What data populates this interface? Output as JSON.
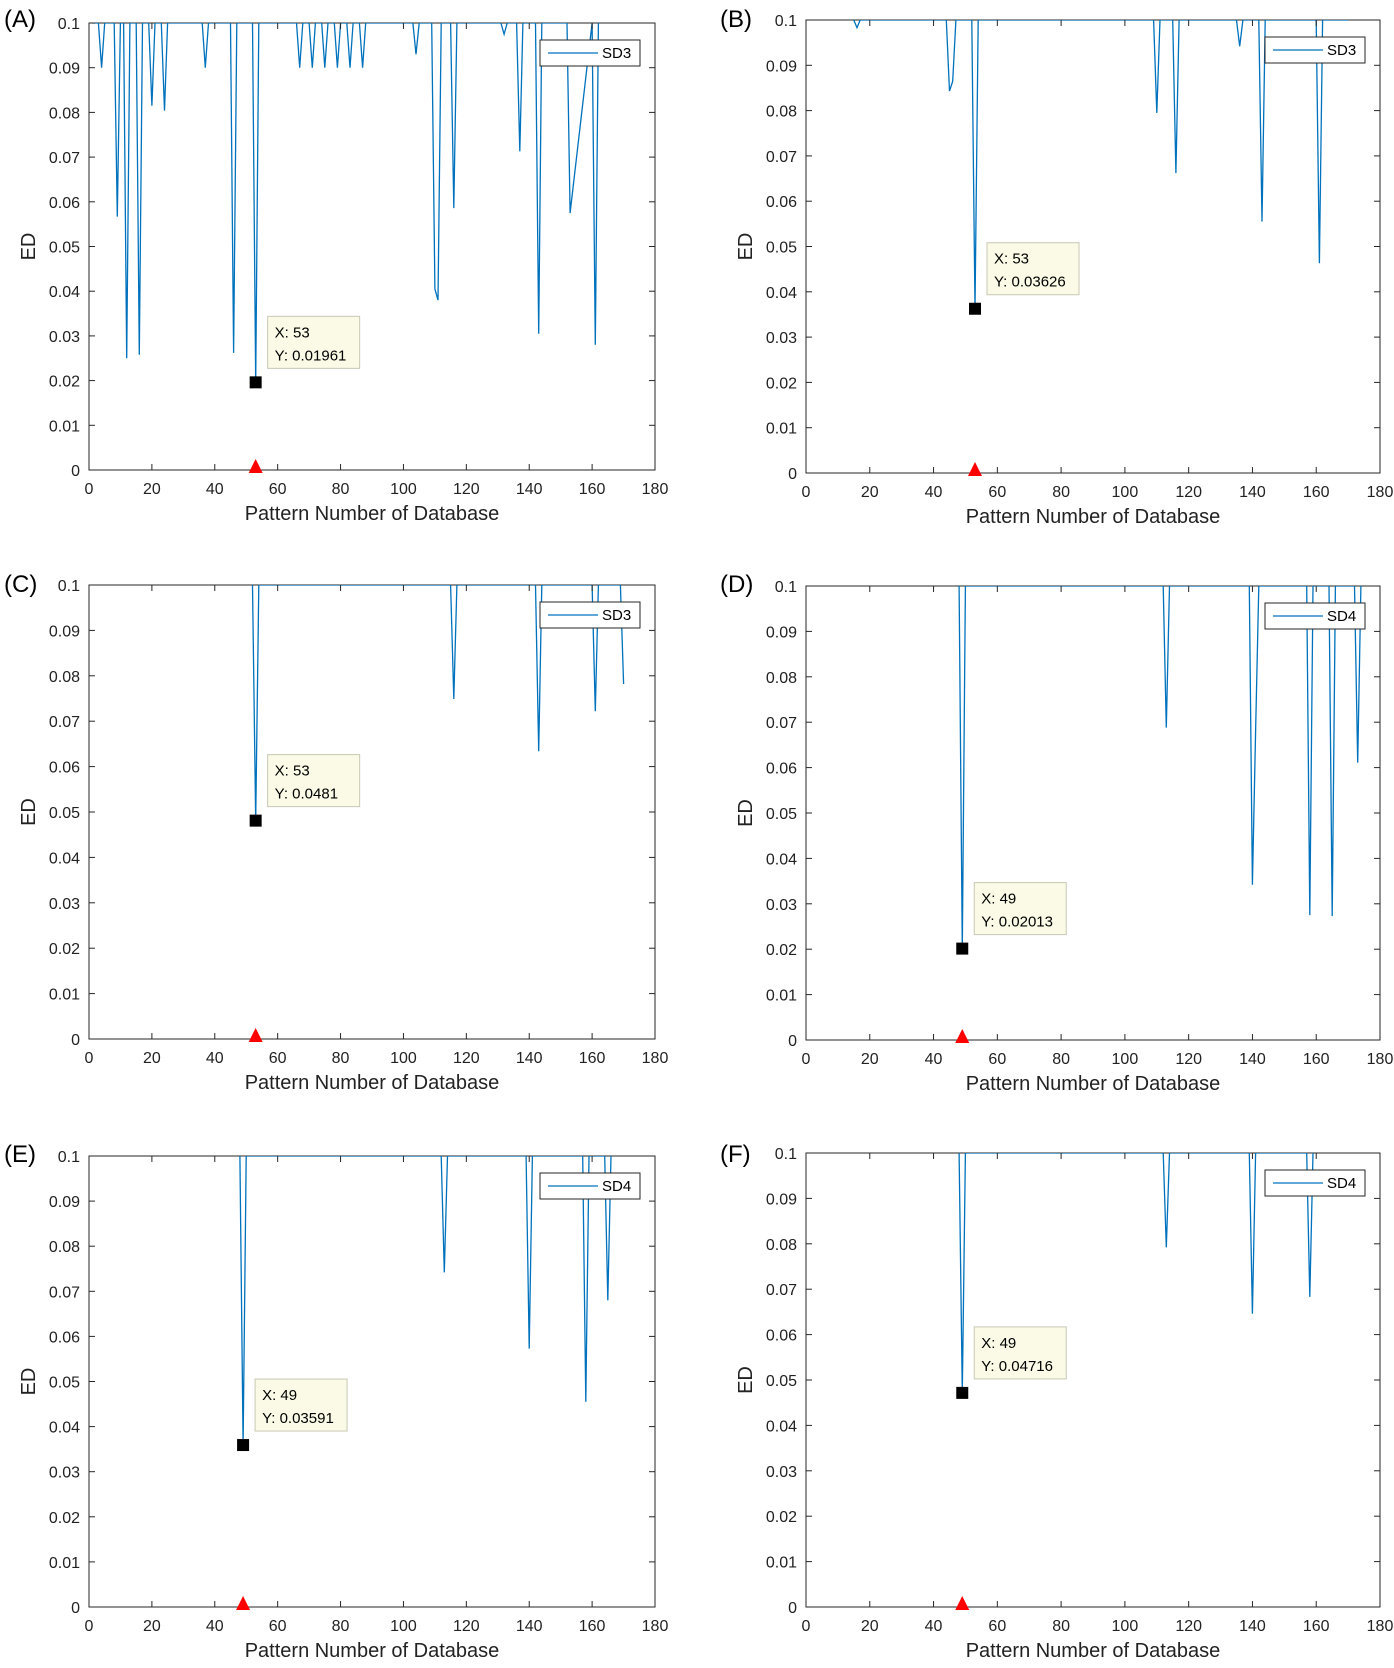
{
  "figure": {
    "xlabel": "Pattern Number of Database",
    "ylabel": "ED"
  },
  "chart_data": [
    {
      "panel": "(A)",
      "type": "line",
      "xlabel": "Pattern Number of Database",
      "ylabel": "ED",
      "xlim": [
        0,
        180
      ],
      "ylim": [
        0,
        0.1
      ],
      "xticks": [
        0,
        20,
        40,
        60,
        80,
        100,
        120,
        140,
        160,
        180
      ],
      "yticks": [
        0,
        0.01,
        0.02,
        0.03,
        0.04,
        0.05,
        0.06,
        0.07,
        0.08,
        0.09,
        0.1
      ],
      "series": [
        {
          "name": "SD3",
          "color": "#0072BD",
          "x": [
            1,
            2,
            3,
            4,
            5,
            6,
            7,
            8,
            9,
            10,
            11,
            12,
            13,
            14,
            15,
            16,
            17,
            18,
            19,
            20,
            21,
            22,
            23,
            24,
            25,
            36,
            37,
            38,
            39,
            45,
            46,
            47,
            52,
            53,
            54,
            55,
            66,
            67,
            68,
            70,
            71,
            72,
            74,
            75,
            76,
            78,
            79,
            80,
            82,
            83,
            84,
            86,
            87,
            88,
            103,
            104,
            105,
            109,
            110,
            111,
            112,
            115,
            116,
            117,
            131,
            132,
            133,
            136,
            137,
            138,
            141,
            142,
            143,
            144,
            151,
            152,
            153,
            160,
            161,
            162
          ],
          "y": [
            0.1,
            0.1,
            0.1,
            0.09,
            0.1,
            0.1,
            0.1,
            0.1,
            0.0567,
            0.1,
            0.1,
            0.025,
            0.1,
            0.1,
            0.1,
            0.0258,
            0.1,
            0.1,
            0.1,
            0.0815,
            0.1,
            0.1,
            0.1,
            0.0804,
            0.1,
            0.1,
            0.09,
            0.1,
            0.1,
            0.1,
            0.0262,
            0.1,
            0.1,
            0.01961,
            0.1,
            0.1,
            0.1,
            0.09,
            0.1,
            0.1,
            0.09,
            0.1,
            0.1,
            0.09,
            0.1,
            0.1,
            0.09,
            0.1,
            0.1,
            0.09,
            0.1,
            0.1,
            0.09,
            0.1,
            0.1,
            0.093,
            0.1,
            0.1,
            0.0405,
            0.038,
            0.1,
            0.1,
            0.0586,
            0.1,
            0.1,
            0.0975,
            0.1,
            0.1,
            0.0713,
            0.1,
            0.1,
            0.1,
            0.0305,
            0.1,
            0.1,
            0.1,
            0.0575,
            0.1,
            0.028,
            0.1
          ]
        }
      ],
      "legend": "top-right",
      "datatip": {
        "x": 53,
        "y": 0.01961,
        "x_text": "X: 53",
        "y_text": "Y: 0.01961"
      },
      "marker_x": 53
    },
    {
      "panel": "(B)",
      "type": "line",
      "xlabel": "Pattern Number of Database",
      "ylabel": "ED",
      "xlim": [
        0,
        180
      ],
      "ylim": [
        0,
        0.1
      ],
      "xticks": [
        0,
        20,
        40,
        60,
        80,
        100,
        120,
        140,
        160,
        180
      ],
      "yticks": [
        0,
        0.01,
        0.02,
        0.03,
        0.04,
        0.05,
        0.06,
        0.07,
        0.08,
        0.09,
        0.1
      ],
      "series": [
        {
          "name": "SD3",
          "color": "#0072BD",
          "x": [
            15,
            16,
            17,
            44,
            45,
            46,
            47,
            52,
            53,
            54,
            109,
            110,
            111,
            115,
            116,
            117,
            135,
            136,
            137,
            142,
            143,
            144,
            160,
            161,
            162,
            169,
            170
          ],
          "y": [
            0.1,
            0.0983,
            0.1,
            0.1,
            0.0843,
            0.0865,
            0.1,
            0.1,
            0.03626,
            0.1,
            0.1,
            0.0795,
            0.1,
            0.1,
            0.0662,
            0.1,
            0.1,
            0.0942,
            0.1,
            0.1,
            0.0555,
            0.1,
            0.1,
            0.0463,
            0.1,
            0.1,
            0.1
          ]
        }
      ],
      "legend": "top-right",
      "datatip": {
        "x": 53,
        "y": 0.03626,
        "x_text": "X: 53",
        "y_text": "Y: 0.03626"
      },
      "marker_x": 53
    },
    {
      "panel": "(C)",
      "type": "line",
      "xlabel": "Pattern Number of Database",
      "ylabel": "ED",
      "xlim": [
        0,
        180
      ],
      "ylim": [
        0,
        0.1
      ],
      "xticks": [
        0,
        20,
        40,
        60,
        80,
        100,
        120,
        140,
        160,
        180
      ],
      "yticks": [
        0,
        0.01,
        0.02,
        0.03,
        0.04,
        0.05,
        0.06,
        0.07,
        0.08,
        0.09,
        0.1
      ],
      "series": [
        {
          "name": "SD3",
          "color": "#0072BD",
          "x": [
            52,
            53,
            54,
            115,
            116,
            117,
            142,
            143,
            144,
            160,
            161,
            162,
            169,
            170
          ],
          "y": [
            0.1,
            0.0481,
            0.1,
            0.1,
            0.0749,
            0.1,
            0.1,
            0.0634,
            0.1,
            0.1,
            0.0722,
            0.1,
            0.1,
            0.0782
          ]
        }
      ],
      "legend": "top-right",
      "datatip": {
        "x": 53,
        "y": 0.0481,
        "x_text": "X: 53",
        "y_text": "Y: 0.0481"
      },
      "marker_x": 53
    },
    {
      "panel": "(D)",
      "type": "line",
      "xlabel": "Pattern Number of Database",
      "ylabel": "ED",
      "xlim": [
        0,
        180
      ],
      "ylim": [
        0,
        0.1
      ],
      "xticks": [
        0,
        20,
        40,
        60,
        80,
        100,
        120,
        140,
        160,
        180
      ],
      "yticks": [
        0,
        0.01,
        0.02,
        0.03,
        0.04,
        0.05,
        0.06,
        0.07,
        0.08,
        0.09,
        0.1
      ],
      "series": [
        {
          "name": "SD4",
          "color": "#0072BD",
          "x": [
            48,
            49,
            50,
            112,
            113,
            114,
            139,
            140,
            141,
            142,
            157,
            158,
            159,
            164,
            165,
            166,
            172,
            173,
            174
          ],
          "y": [
            0.1,
            0.02013,
            0.1,
            0.1,
            0.0688,
            0.1,
            0.1,
            0.0342,
            0.068,
            0.1,
            0.1,
            0.0275,
            0.1,
            0.1,
            0.0273,
            0.1,
            0.1,
            0.0611,
            0.1
          ]
        }
      ],
      "legend": "top-right",
      "datatip": {
        "x": 49,
        "y": 0.02013,
        "x_text": "X: 49",
        "y_text": "Y: 0.02013"
      },
      "marker_x": 49
    },
    {
      "panel": "(E)",
      "type": "line",
      "xlabel": "Pattern Number of Database",
      "ylabel": "ED",
      "xlim": [
        0,
        180
      ],
      "ylim": [
        0,
        0.1
      ],
      "xticks": [
        0,
        20,
        40,
        60,
        80,
        100,
        120,
        140,
        160,
        180
      ],
      "yticks": [
        0,
        0.01,
        0.02,
        0.03,
        0.04,
        0.05,
        0.06,
        0.07,
        0.08,
        0.09,
        0.1
      ],
      "series": [
        {
          "name": "SD4",
          "color": "#0072BD",
          "x": [
            48,
            49,
            50,
            112,
            113,
            114,
            139,
            140,
            141,
            157,
            158,
            159,
            164,
            165,
            166
          ],
          "y": [
            0.1,
            0.03591,
            0.1,
            0.1,
            0.0742,
            0.1,
            0.1,
            0.0573,
            0.1,
            0.1,
            0.0455,
            0.1,
            0.1,
            0.068,
            0.1
          ]
        }
      ],
      "legend": "top-right",
      "datatip": {
        "x": 49,
        "y": 0.03591,
        "x_text": "X: 49",
        "y_text": "Y: 0.03591"
      },
      "marker_x": 49
    },
    {
      "panel": "(F)",
      "type": "line",
      "xlabel": "Pattern Number of Database",
      "ylabel": "ED",
      "xlim": [
        0,
        180
      ],
      "ylim": [
        0,
        0.1
      ],
      "xticks": [
        0,
        20,
        40,
        60,
        80,
        100,
        120,
        140,
        160,
        180
      ],
      "yticks": [
        0,
        0.01,
        0.02,
        0.03,
        0.04,
        0.05,
        0.06,
        0.07,
        0.08,
        0.09,
        0.1
      ],
      "series": [
        {
          "name": "SD4",
          "color": "#0072BD",
          "x": [
            48,
            49,
            50,
            112,
            113,
            114,
            139,
            140,
            141,
            157,
            158,
            159
          ],
          "y": [
            0.1,
            0.04716,
            0.1,
            0.1,
            0.0792,
            0.1,
            0.1,
            0.0646,
            0.1,
            0.1,
            0.0683,
            0.1
          ]
        }
      ],
      "legend": "top-right",
      "datatip": {
        "x": 49,
        "y": 0.04716,
        "x_text": "X: 49",
        "y_text": "Y: 0.04716"
      },
      "marker_x": 49
    }
  ],
  "colors": {
    "line": "#0072BD",
    "marker": "#ff0000",
    "datatip_bg": "#fafae6"
  }
}
